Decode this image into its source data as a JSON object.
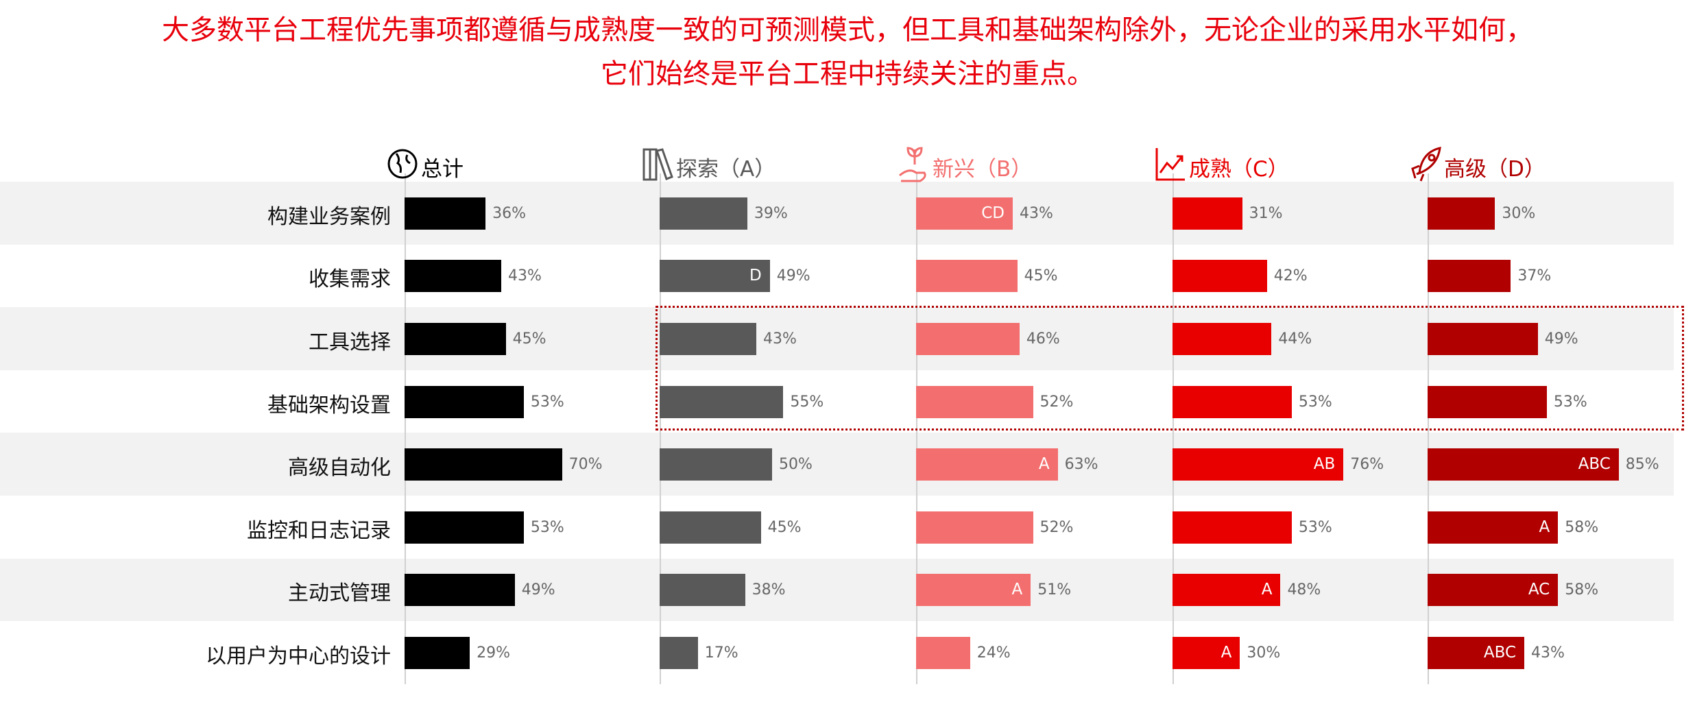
{
  "title_lines": [
    "大多数平台工程优先事项都遵循与成熟度一致的可预测模式，但工具和基础架构除外，无论企业的采用水平如何，",
    "它们始终是平台工程中持续关注的重点。"
  ],
  "chart_data": {
    "type": "bar",
    "orientation": "horizontal",
    "categories": [
      "构建业务案例",
      "收集需求",
      "工具选择",
      "基础架构设置",
      "高级自动化",
      "监控和日志记录",
      "主动式管理",
      "以用户为中心的设计"
    ],
    "series": [
      {
        "name": "总计",
        "icon": "globe-icon",
        "color": "#000000",
        "values": [
          36,
          43,
          45,
          53,
          70,
          53,
          49,
          29
        ],
        "labels": [
          "",
          "",
          "",
          "",
          "",
          "",
          "",
          ""
        ]
      },
      {
        "name": "探索（A）",
        "icon": "books-icon",
        "color": "#595959",
        "values": [
          39,
          49,
          43,
          55,
          50,
          45,
          38,
          17
        ],
        "labels": [
          "",
          "D",
          "",
          "",
          "",
          "",
          "",
          ""
        ]
      },
      {
        "name": "新兴（B）",
        "icon": "sprout-hand-icon",
        "color": "#f36f6f",
        "values": [
          43,
          45,
          46,
          52,
          63,
          52,
          51,
          24
        ],
        "labels": [
          "CD",
          "",
          "",
          "",
          "A",
          "",
          "A",
          ""
        ]
      },
      {
        "name": "成熟（C）",
        "icon": "growth-chart-icon",
        "color": "#e80000",
        "values": [
          31,
          42,
          44,
          53,
          76,
          53,
          48,
          30
        ],
        "labels": [
          "",
          "",
          "",
          "",
          "AB",
          "",
          "A",
          "A"
        ]
      },
      {
        "name": "高级（D）",
        "icon": "rocket-icon",
        "color": "#b00000",
        "values": [
          30,
          37,
          49,
          53,
          85,
          58,
          58,
          43
        ],
        "labels": [
          "",
          "",
          "",
          "",
          "ABC",
          "A",
          "AC",
          "ABC"
        ]
      }
    ],
    "highlight_categories": [
      "工具选择",
      "基础架构设置"
    ],
    "value_suffix": "%"
  }
}
